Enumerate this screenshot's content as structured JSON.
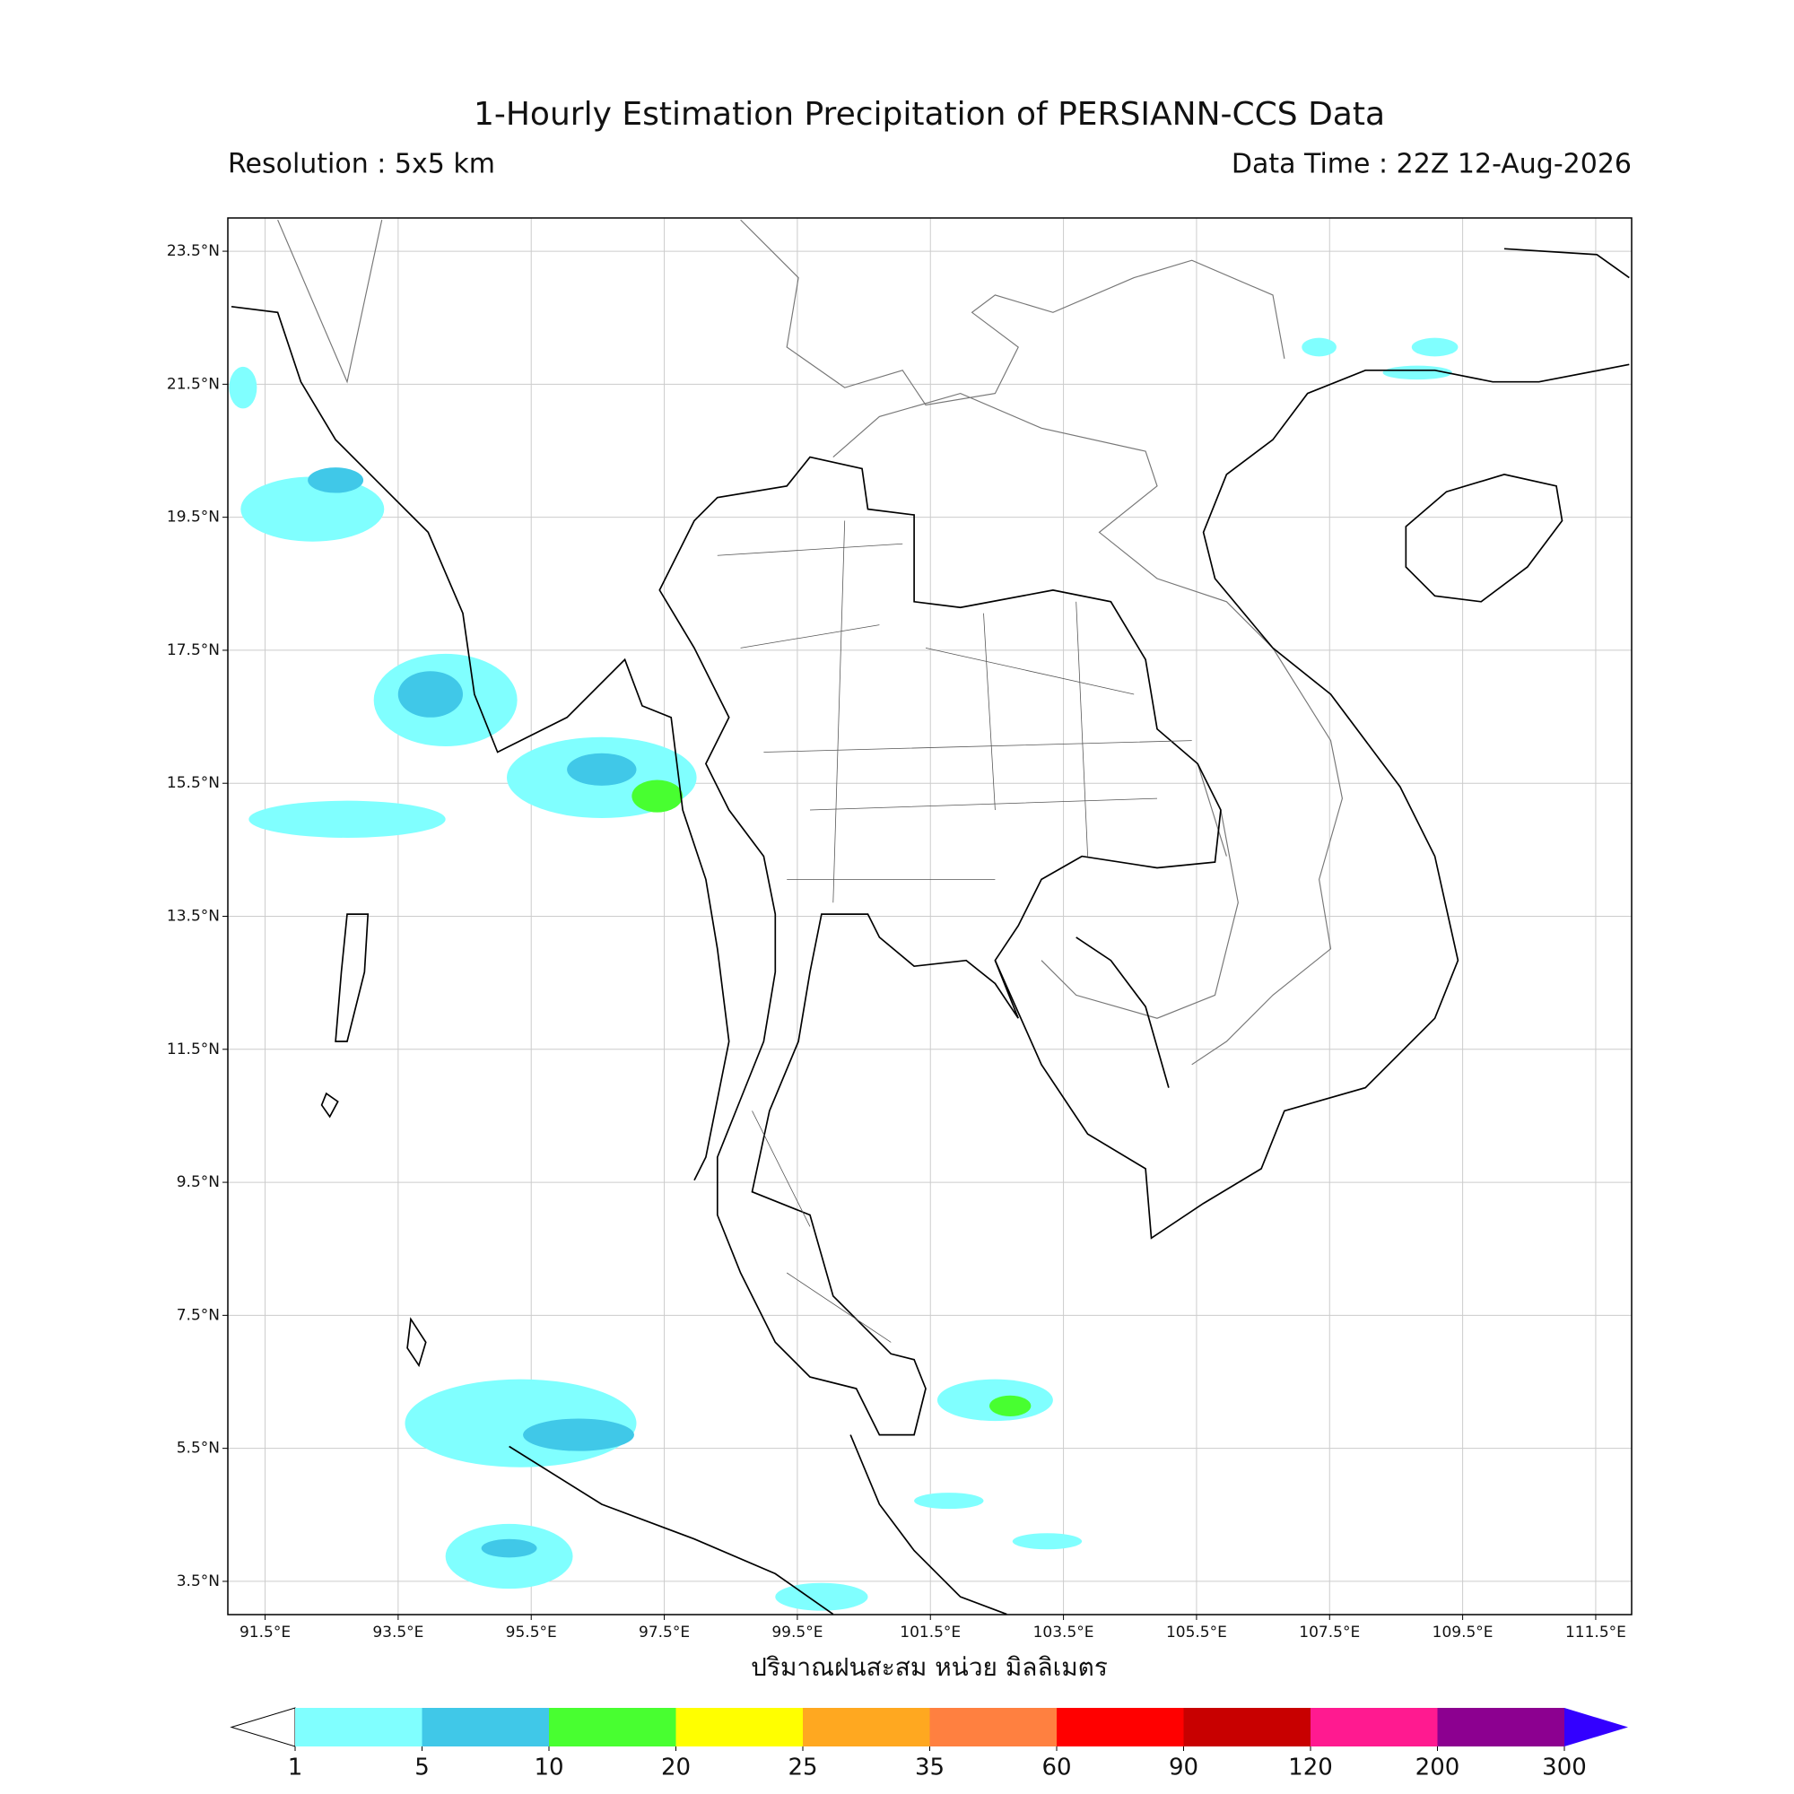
{
  "map": {
    "title": "1-Hourly Estimation Precipitation of PERSIANN-CCS Data",
    "resolution": "Resolution : 5x5 km",
    "data_time": "Data Time : 22Z 12-Aug-2026",
    "xlim": [
      90.94,
      112.04
    ],
    "ylim": [
      3.0,
      24.0
    ],
    "xticks": [
      {
        "value": 91.5,
        "label": "91.5°E"
      },
      {
        "value": 93.5,
        "label": "93.5°E"
      },
      {
        "value": 95.5,
        "label": "95.5°E"
      },
      {
        "value": 97.5,
        "label": "97.5°E"
      },
      {
        "value": 99.5,
        "label": "99.5°E"
      },
      {
        "value": 101.5,
        "label": "101.5°E"
      },
      {
        "value": 103.5,
        "label": "103.5°E"
      },
      {
        "value": 105.5,
        "label": "105.5°E"
      },
      {
        "value": 107.5,
        "label": "107.5°E"
      },
      {
        "value": 109.5,
        "label": "109.5°E"
      },
      {
        "value": 111.5,
        "label": "111.5°E"
      }
    ],
    "yticks": [
      {
        "value": 23.5,
        "label": "23.5°N"
      },
      {
        "value": 21.5,
        "label": "21.5°N"
      },
      {
        "value": 19.5,
        "label": "19.5°N"
      },
      {
        "value": 17.5,
        "label": "17.5°N"
      },
      {
        "value": 15.5,
        "label": "15.5°N"
      },
      {
        "value": 13.5,
        "label": "13.5°N"
      },
      {
        "value": 11.5,
        "label": "11.5°N"
      },
      {
        "value": 9.5,
        "label": "9.5°N"
      },
      {
        "value": 7.5,
        "label": "7.5°N"
      },
      {
        "value": 5.5,
        "label": "5.5°N"
      },
      {
        "value": 3.5,
        "label": "3.5°N"
      }
    ],
    "grid": true,
    "colorbar": {
      "label": "ปริมาณฝนสะสม หน่วย มิลลิเมตร",
      "levels": [
        1,
        5,
        10,
        20,
        25,
        35,
        60,
        90,
        120,
        200,
        300
      ],
      "colors": [
        "#80ffff",
        "#40c8e8",
        "#48ff30",
        "#ffff00",
        "#ffa820",
        "#ff8040",
        "#ff0000",
        "#c80000",
        "#ff1a90",
        "#8c0090"
      ],
      "under_color": "#ffffff",
      "over_color": "#3300ff"
    }
  }
}
